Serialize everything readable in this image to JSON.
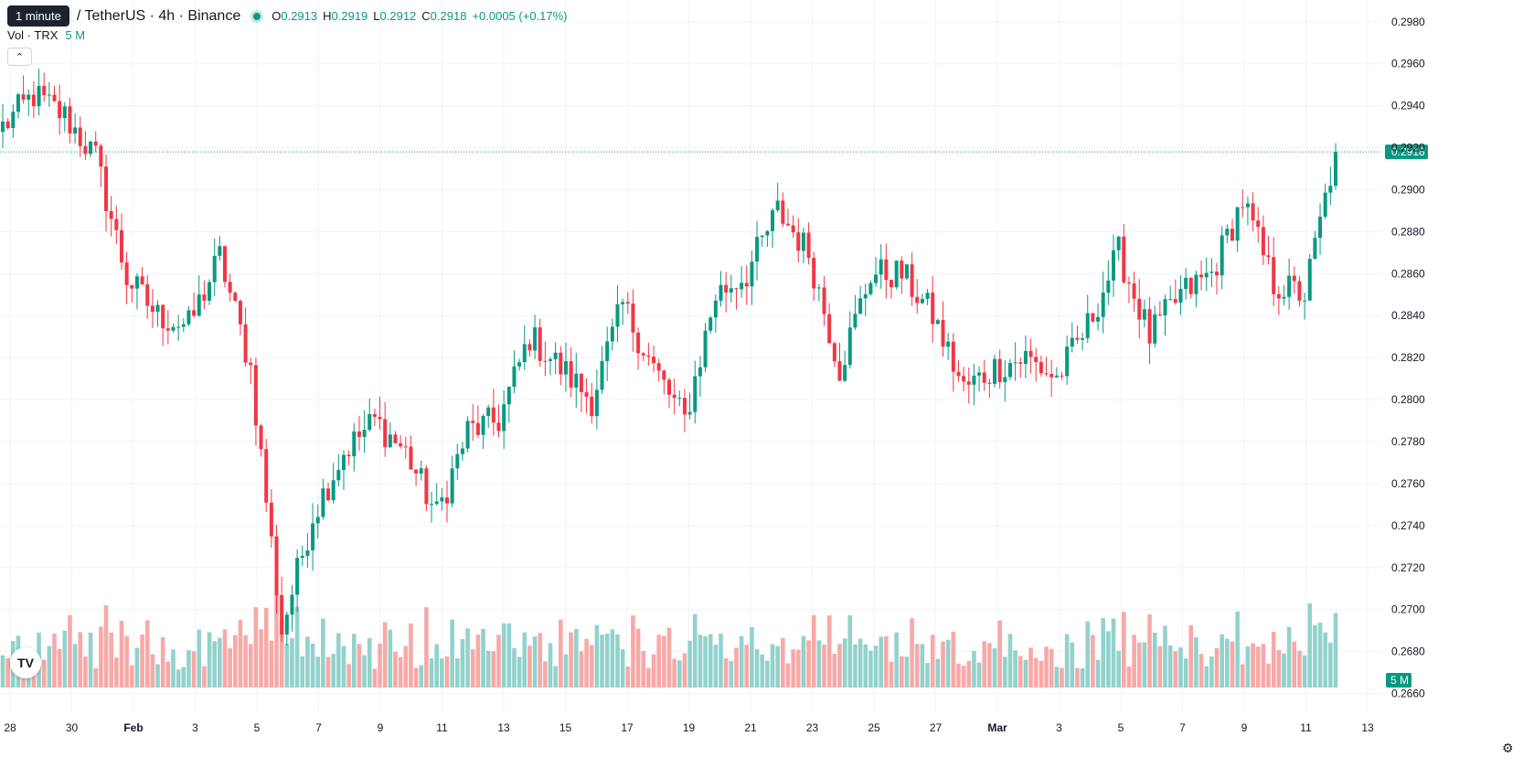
{
  "header": {
    "tooltip": "1 minute",
    "symbol": "/ TetherUS · 4h · Binance",
    "ohlc": [
      {
        "label": "O",
        "value": "0.2913"
      },
      {
        "label": "H",
        "value": "0.2919"
      },
      {
        "label": "L",
        "value": "0.2912"
      },
      {
        "label": "C",
        "value": "0.2918"
      }
    ],
    "change": "+0.0005 (+0.17%)"
  },
  "volume_legend": {
    "label": "Vol · TRX",
    "value": "5 M"
  },
  "logo": "TV",
  "settings_icon": "gear-icon",
  "colors": {
    "up": "#089981",
    "down": "#f23645",
    "up_vol": "#92d2cc",
    "down_vol": "#f7a9a7",
    "grid": "#f0f3fa",
    "last_price": "#089981"
  },
  "chart_data": {
    "type": "candlestick",
    "y_axis_ticks": [
      "0.2980",
      "0.2960",
      "0.2940",
      "0.2920",
      "0.2900",
      "0.2880",
      "0.2860",
      "0.2840",
      "0.2820",
      "0.2800",
      "0.2780",
      "0.2760",
      "0.2740",
      "0.2720",
      "0.2700",
      "0.2680",
      "0.2660"
    ],
    "ylim": [
      0.2655,
      0.2986
    ],
    "x_axis_ticks": [
      "28",
      "30",
      "Feb",
      "3",
      "5",
      "7",
      "9",
      "11",
      "13",
      "15",
      "17",
      "19",
      "21",
      "23",
      "25",
      "27",
      "Mar",
      "3",
      "5",
      "7",
      "9",
      "11",
      "13"
    ],
    "last_price": "0.2918",
    "volume_axis_label": "5 M",
    "volume_max_m": 7.5,
    "candles_anchor": [
      [
        "28",
        0.293
      ],
      [
        "29",
        0.2945
      ],
      [
        "30",
        0.2935
      ],
      [
        "31",
        0.2915
      ],
      [
        "Feb",
        0.2858
      ],
      [
        "2",
        0.284
      ],
      [
        "3",
        0.2835
      ],
      [
        "4",
        0.2868
      ],
      [
        "5",
        0.2815
      ],
      [
        "6",
        0.269
      ],
      [
        "7",
        0.2745
      ],
      [
        "8",
        0.2775
      ],
      [
        "9",
        0.279
      ],
      [
        "10",
        0.2775
      ],
      [
        "11",
        0.2745
      ],
      [
        "12",
        0.2785
      ],
      [
        "13",
        0.279
      ],
      [
        "14",
        0.283
      ],
      [
        "15",
        0.2815
      ],
      [
        "16",
        0.28
      ],
      [
        "17",
        0.2845
      ],
      [
        "18",
        0.2815
      ],
      [
        "19",
        0.279
      ],
      [
        "20",
        0.285
      ],
      [
        "21",
        0.286
      ],
      [
        "22",
        0.289
      ],
      [
        "23",
        0.287
      ],
      [
        "24",
        0.2815
      ],
      [
        "25",
        0.286
      ],
      [
        "26",
        0.286
      ],
      [
        "27",
        0.284
      ],
      [
        "28",
        0.2805
      ],
      [
        "Mar",
        0.2815
      ],
      [
        "2",
        0.282
      ],
      [
        "3",
        0.281
      ],
      [
        "4",
        0.2835
      ],
      [
        "5",
        0.287
      ],
      [
        "6",
        0.283
      ],
      [
        "7",
        0.285
      ],
      [
        "8",
        0.286
      ],
      [
        "9",
        0.2895
      ],
      [
        "10",
        0.2855
      ],
      [
        "11",
        0.285
      ],
      [
        "12",
        0.2918
      ]
    ]
  }
}
